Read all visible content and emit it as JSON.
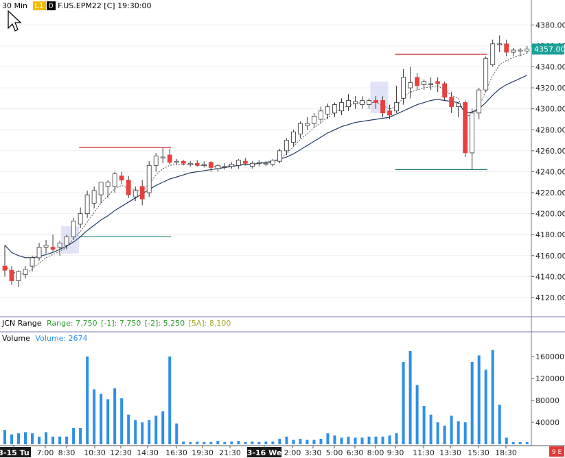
{
  "header": {
    "timeframe": "30 Min",
    "l1_badge": "L1",
    "zero_badge": "0",
    "symbol_info": "F.US.EPM22 [C] 19:30:00"
  },
  "price_marker": "4357.00",
  "range_pane": {
    "title": "JCN Range",
    "range_text": "Range: 7.750",
    "minus1_text": "[-1]: 7.750",
    "minus2_text": "[-2]: 5.250",
    "avg5_text": "[5A]: 8.100"
  },
  "volume_pane": {
    "title": "Volume",
    "volume_text": "Volume: 2674"
  },
  "x_axis": {
    "labels": [
      "3-15 Tu",
      "7:00",
      "8:30",
      "10:30",
      "12:30",
      "14:30",
      "16:30",
      "19:30",
      "21:30",
      "3-16 We",
      "2:00",
      "3:30",
      "5:00",
      "6:30",
      "8:00",
      "9:30",
      "11:30",
      "13:30",
      "15:30",
      "18:30"
    ],
    "corner_badge": "9 E"
  },
  "colors": {
    "up_body": "#ffffff",
    "down_body": "#e8403f",
    "wick": "#333333",
    "volume_bar": "#2e8fe8",
    "ma_slow": "#1f3a5f",
    "ma_fast": "#555555",
    "resistance": "#cc2a2a",
    "support": "#1a7a70",
    "marker_bg": "#1aa198",
    "highlight": "#c9cdf2"
  },
  "chart_data": {
    "type": "candlestick",
    "price_axis": {
      "ticks": [
        4120,
        4140,
        4160,
        4180,
        4200,
        4220,
        4240,
        4260,
        4280,
        4300,
        4320,
        4340,
        4360,
        4380
      ],
      "range": [
        4103,
        4392
      ]
    },
    "volume_axis": {
      "ticks": [
        40000,
        80000,
        120000,
        160000
      ],
      "range": [
        0,
        185000
      ]
    },
    "candles": [
      {
        "o": 4150,
        "h": 4170,
        "l": 4140,
        "c": 4146
      },
      {
        "o": 4146,
        "h": 4150,
        "l": 4132,
        "c": 4136
      },
      {
        "o": 4136,
        "h": 4146,
        "l": 4130,
        "c": 4145
      },
      {
        "o": 4142,
        "h": 4150,
        "l": 4138,
        "c": 4147
      },
      {
        "o": 4150,
        "h": 4160,
        "l": 4145,
        "c": 4158
      },
      {
        "o": 4158,
        "h": 4172,
        "l": 4155,
        "c": 4168
      },
      {
        "o": 4168,
        "h": 4175,
        "l": 4162,
        "c": 4170
      },
      {
        "o": 4168,
        "h": 4180,
        "l": 4164,
        "c": 4166
      },
      {
        "o": 4168,
        "h": 4174,
        "l": 4160,
        "c": 4172
      },
      {
        "o": 4170,
        "h": 4180,
        "l": 4166,
        "c": 4178
      },
      {
        "o": 4178,
        "h": 4196,
        "l": 4175,
        "c": 4193
      },
      {
        "o": 4190,
        "h": 4206,
        "l": 4186,
        "c": 4200
      },
      {
        "o": 4200,
        "h": 4222,
        "l": 4196,
        "c": 4218
      },
      {
        "o": 4210,
        "h": 4226,
        "l": 4205,
        "c": 4222
      },
      {
        "o": 4218,
        "h": 4230,
        "l": 4210,
        "c": 4230
      },
      {
        "o": 4226,
        "h": 4232,
        "l": 4215,
        "c": 4230
      },
      {
        "o": 4226,
        "h": 4240,
        "l": 4220,
        "c": 4238
      },
      {
        "o": 4236,
        "h": 4240,
        "l": 4228,
        "c": 4232
      },
      {
        "o": 4232,
        "h": 4236,
        "l": 4215,
        "c": 4218
      },
      {
        "o": 4216,
        "h": 4226,
        "l": 4212,
        "c": 4222
      },
      {
        "o": 4226,
        "h": 4232,
        "l": 4208,
        "c": 4214
      },
      {
        "o": 4220,
        "h": 4250,
        "l": 4216,
        "c": 4246
      },
      {
        "o": 4246,
        "h": 4258,
        "l": 4240,
        "c": 4255
      },
      {
        "o": 4254,
        "h": 4263,
        "l": 4248,
        "c": 4254
      },
      {
        "o": 4256,
        "h": 4262,
        "l": 4247,
        "c": 4249
      },
      {
        "o": 4249,
        "h": 4252,
        "l": 4247,
        "c": 4250
      },
      {
        "o": 4250,
        "h": 4251,
        "l": 4246,
        "c": 4248
      },
      {
        "o": 4247,
        "h": 4250,
        "l": 4245,
        "c": 4248
      },
      {
        "o": 4248,
        "h": 4251,
        "l": 4245,
        "c": 4246
      },
      {
        "o": 4246,
        "h": 4250,
        "l": 4244,
        "c": 4247
      },
      {
        "o": 4249,
        "h": 4250,
        "l": 4240,
        "c": 4244
      },
      {
        "o": 4243,
        "h": 4247,
        "l": 4240,
        "c": 4246
      },
      {
        "o": 4245,
        "h": 4248,
        "l": 4242,
        "c": 4245
      },
      {
        "o": 4245,
        "h": 4249,
        "l": 4243,
        "c": 4247
      },
      {
        "o": 4246,
        "h": 4252,
        "l": 4243,
        "c": 4251
      },
      {
        "o": 4250,
        "h": 4253,
        "l": 4246,
        "c": 4248
      },
      {
        "o": 4245,
        "h": 4250,
        "l": 4243,
        "c": 4248
      },
      {
        "o": 4248,
        "h": 4251,
        "l": 4245,
        "c": 4249
      },
      {
        "o": 4248,
        "h": 4250,
        "l": 4245,
        "c": 4248
      },
      {
        "o": 4247,
        "h": 4252,
        "l": 4245,
        "c": 4251
      },
      {
        "o": 4250,
        "h": 4262,
        "l": 4248,
        "c": 4260
      },
      {
        "o": 4260,
        "h": 4272,
        "l": 4256,
        "c": 4270
      },
      {
        "o": 4268,
        "h": 4280,
        "l": 4264,
        "c": 4278
      },
      {
        "o": 4276,
        "h": 4288,
        "l": 4272,
        "c": 4286
      },
      {
        "o": 4284,
        "h": 4292,
        "l": 4280,
        "c": 4286
      },
      {
        "o": 4286,
        "h": 4296,
        "l": 4282,
        "c": 4293
      },
      {
        "o": 4290,
        "h": 4302,
        "l": 4286,
        "c": 4298
      },
      {
        "o": 4295,
        "h": 4305,
        "l": 4290,
        "c": 4302
      },
      {
        "o": 4296,
        "h": 4306,
        "l": 4292,
        "c": 4304
      },
      {
        "o": 4298,
        "h": 4310,
        "l": 4294,
        "c": 4306
      },
      {
        "o": 4302,
        "h": 4314,
        "l": 4298,
        "c": 4308
      },
      {
        "o": 4305,
        "h": 4312,
        "l": 4300,
        "c": 4307
      },
      {
        "o": 4304,
        "h": 4312,
        "l": 4300,
        "c": 4308
      },
      {
        "o": 4304,
        "h": 4310,
        "l": 4300,
        "c": 4308
      },
      {
        "o": 4308,
        "h": 4312,
        "l": 4300,
        "c": 4306
      },
      {
        "o": 4308,
        "h": 4312,
        "l": 4292,
        "c": 4296
      },
      {
        "o": 4298,
        "h": 4304,
        "l": 4290,
        "c": 4294
      },
      {
        "o": 4298,
        "h": 4322,
        "l": 4296,
        "c": 4306
      },
      {
        "o": 4310,
        "h": 4338,
        "l": 4304,
        "c": 4330
      },
      {
        "o": 4320,
        "h": 4340,
        "l": 4310,
        "c": 4325
      },
      {
        "o": 4330,
        "h": 4334,
        "l": 4318,
        "c": 4322
      },
      {
        "o": 4323,
        "h": 4328,
        "l": 4318,
        "c": 4326
      },
      {
        "o": 4324,
        "h": 4330,
        "l": 4318,
        "c": 4324
      },
      {
        "o": 4326,
        "h": 4330,
        "l": 4316,
        "c": 4324
      },
      {
        "o": 4324,
        "h": 4326,
        "l": 4308,
        "c": 4311
      },
      {
        "o": 4311,
        "h": 4316,
        "l": 4296,
        "c": 4302
      },
      {
        "o": 4302,
        "h": 4306,
        "l": 4292,
        "c": 4305
      },
      {
        "o": 4306,
        "h": 4308,
        "l": 4254,
        "c": 4258
      },
      {
        "o": 4258,
        "h": 4300,
        "l": 4242,
        "c": 4296
      },
      {
        "o": 4296,
        "h": 4320,
        "l": 4290,
        "c": 4318
      },
      {
        "o": 4318,
        "h": 4350,
        "l": 4316,
        "c": 4348
      },
      {
        "o": 4342,
        "h": 4366,
        "l": 4340,
        "c": 4362
      },
      {
        "o": 4362,
        "h": 4370,
        "l": 4354,
        "c": 4362
      },
      {
        "o": 4362,
        "h": 4366,
        "l": 4350,
        "c": 4354
      },
      {
        "o": 4354,
        "h": 4358,
        "l": 4350,
        "c": 4356
      },
      {
        "o": 4355,
        "h": 4358,
        "l": 4350,
        "c": 4356
      },
      {
        "o": 4355,
        "h": 4360,
        "l": 4353,
        "c": 4357
      }
    ],
    "volume": [
      26000,
      18000,
      20000,
      22000,
      20000,
      14000,
      22000,
      14000,
      14000,
      14000,
      30000,
      30000,
      160000,
      100000,
      92000,
      82000,
      102000,
      84000,
      54000,
      44000,
      40000,
      44000,
      52000,
      60000,
      160000,
      38000,
      5000,
      4000,
      5000,
      4000,
      4000,
      6000,
      4000,
      5000,
      6000,
      4000,
      5000,
      4000,
      5000,
      5000,
      10000,
      14000,
      8000,
      10000,
      8000,
      8000,
      10000,
      20000,
      16000,
      12000,
      14000,
      12000,
      12000,
      14000,
      14000,
      14000,
      16000,
      20000,
      150000,
      170000,
      108000,
      70000,
      54000,
      40000,
      34000,
      52000,
      42000,
      40000,
      150000,
      162000,
      136000,
      172000,
      72000,
      12000,
      4000,
      4000,
      4000
    ],
    "ma_fast": [
      4150,
      4145,
      4142,
      4143,
      4147,
      4153,
      4158,
      4161,
      4164,
      4168,
      4176,
      4183,
      4192,
      4201,
      4210,
      4217,
      4224,
      4227,
      4224,
      4223,
      4221,
      4228,
      4237,
      4243,
      4246,
      4247,
      4247,
      4247,
      4246,
      4246,
      4245,
      4245,
      4245,
      4246,
      4247,
      4247,
      4247,
      4248,
      4248,
      4249,
      4252,
      4257,
      4264,
      4271,
      4276,
      4282,
      4287,
      4292,
      4296,
      4300,
      4303,
      4305,
      4306,
      4306,
      4306,
      4303,
      4300,
      4302,
      4311,
      4316,
      4318,
      4320,
      4321,
      4322,
      4318,
      4313,
      4310,
      4293,
      4294,
      4302,
      4317,
      4332,
      4342,
      4346,
      4349,
      4351,
      4353
    ],
    "ma_slow": [
      4170,
      4163,
      4160,
      4158,
      4158,
      4159,
      4161,
      4163,
      4166,
      4169,
      4173,
      4178,
      4184,
      4189,
      4194,
      4198,
      4203,
      4207,
      4211,
      4215,
      4219,
      4223,
      4227,
      4230,
      4233,
      4235,
      4237,
      4239,
      4240,
      4241,
      4242,
      4243,
      4244,
      4245,
      4246,
      4247,
      4247,
      4248,
      4249,
      4250,
      4252,
      4254,
      4257,
      4261,
      4265,
      4269,
      4273,
      4277,
      4280,
      4283,
      4285,
      4287,
      4288,
      4289,
      4290,
      4291,
      4292,
      4295,
      4298,
      4301,
      4304,
      4306,
      4308,
      4309,
      4308,
      4307,
      4306,
      4296,
      4297,
      4300,
      4306,
      4313,
      4319,
      4323,
      4326,
      4329,
      4332
    ],
    "resistance_lines": [
      {
        "price": 4263,
        "from": 11,
        "to": 24
      },
      {
        "price": 4352,
        "from": 57,
        "to": 70
      }
    ],
    "support_lines": [
      {
        "price": 4178,
        "from": 11,
        "to": 24
      },
      {
        "price": 4242,
        "from": 57,
        "to": 70
      }
    ],
    "highlighted_candles": [
      9,
      54
    ]
  }
}
